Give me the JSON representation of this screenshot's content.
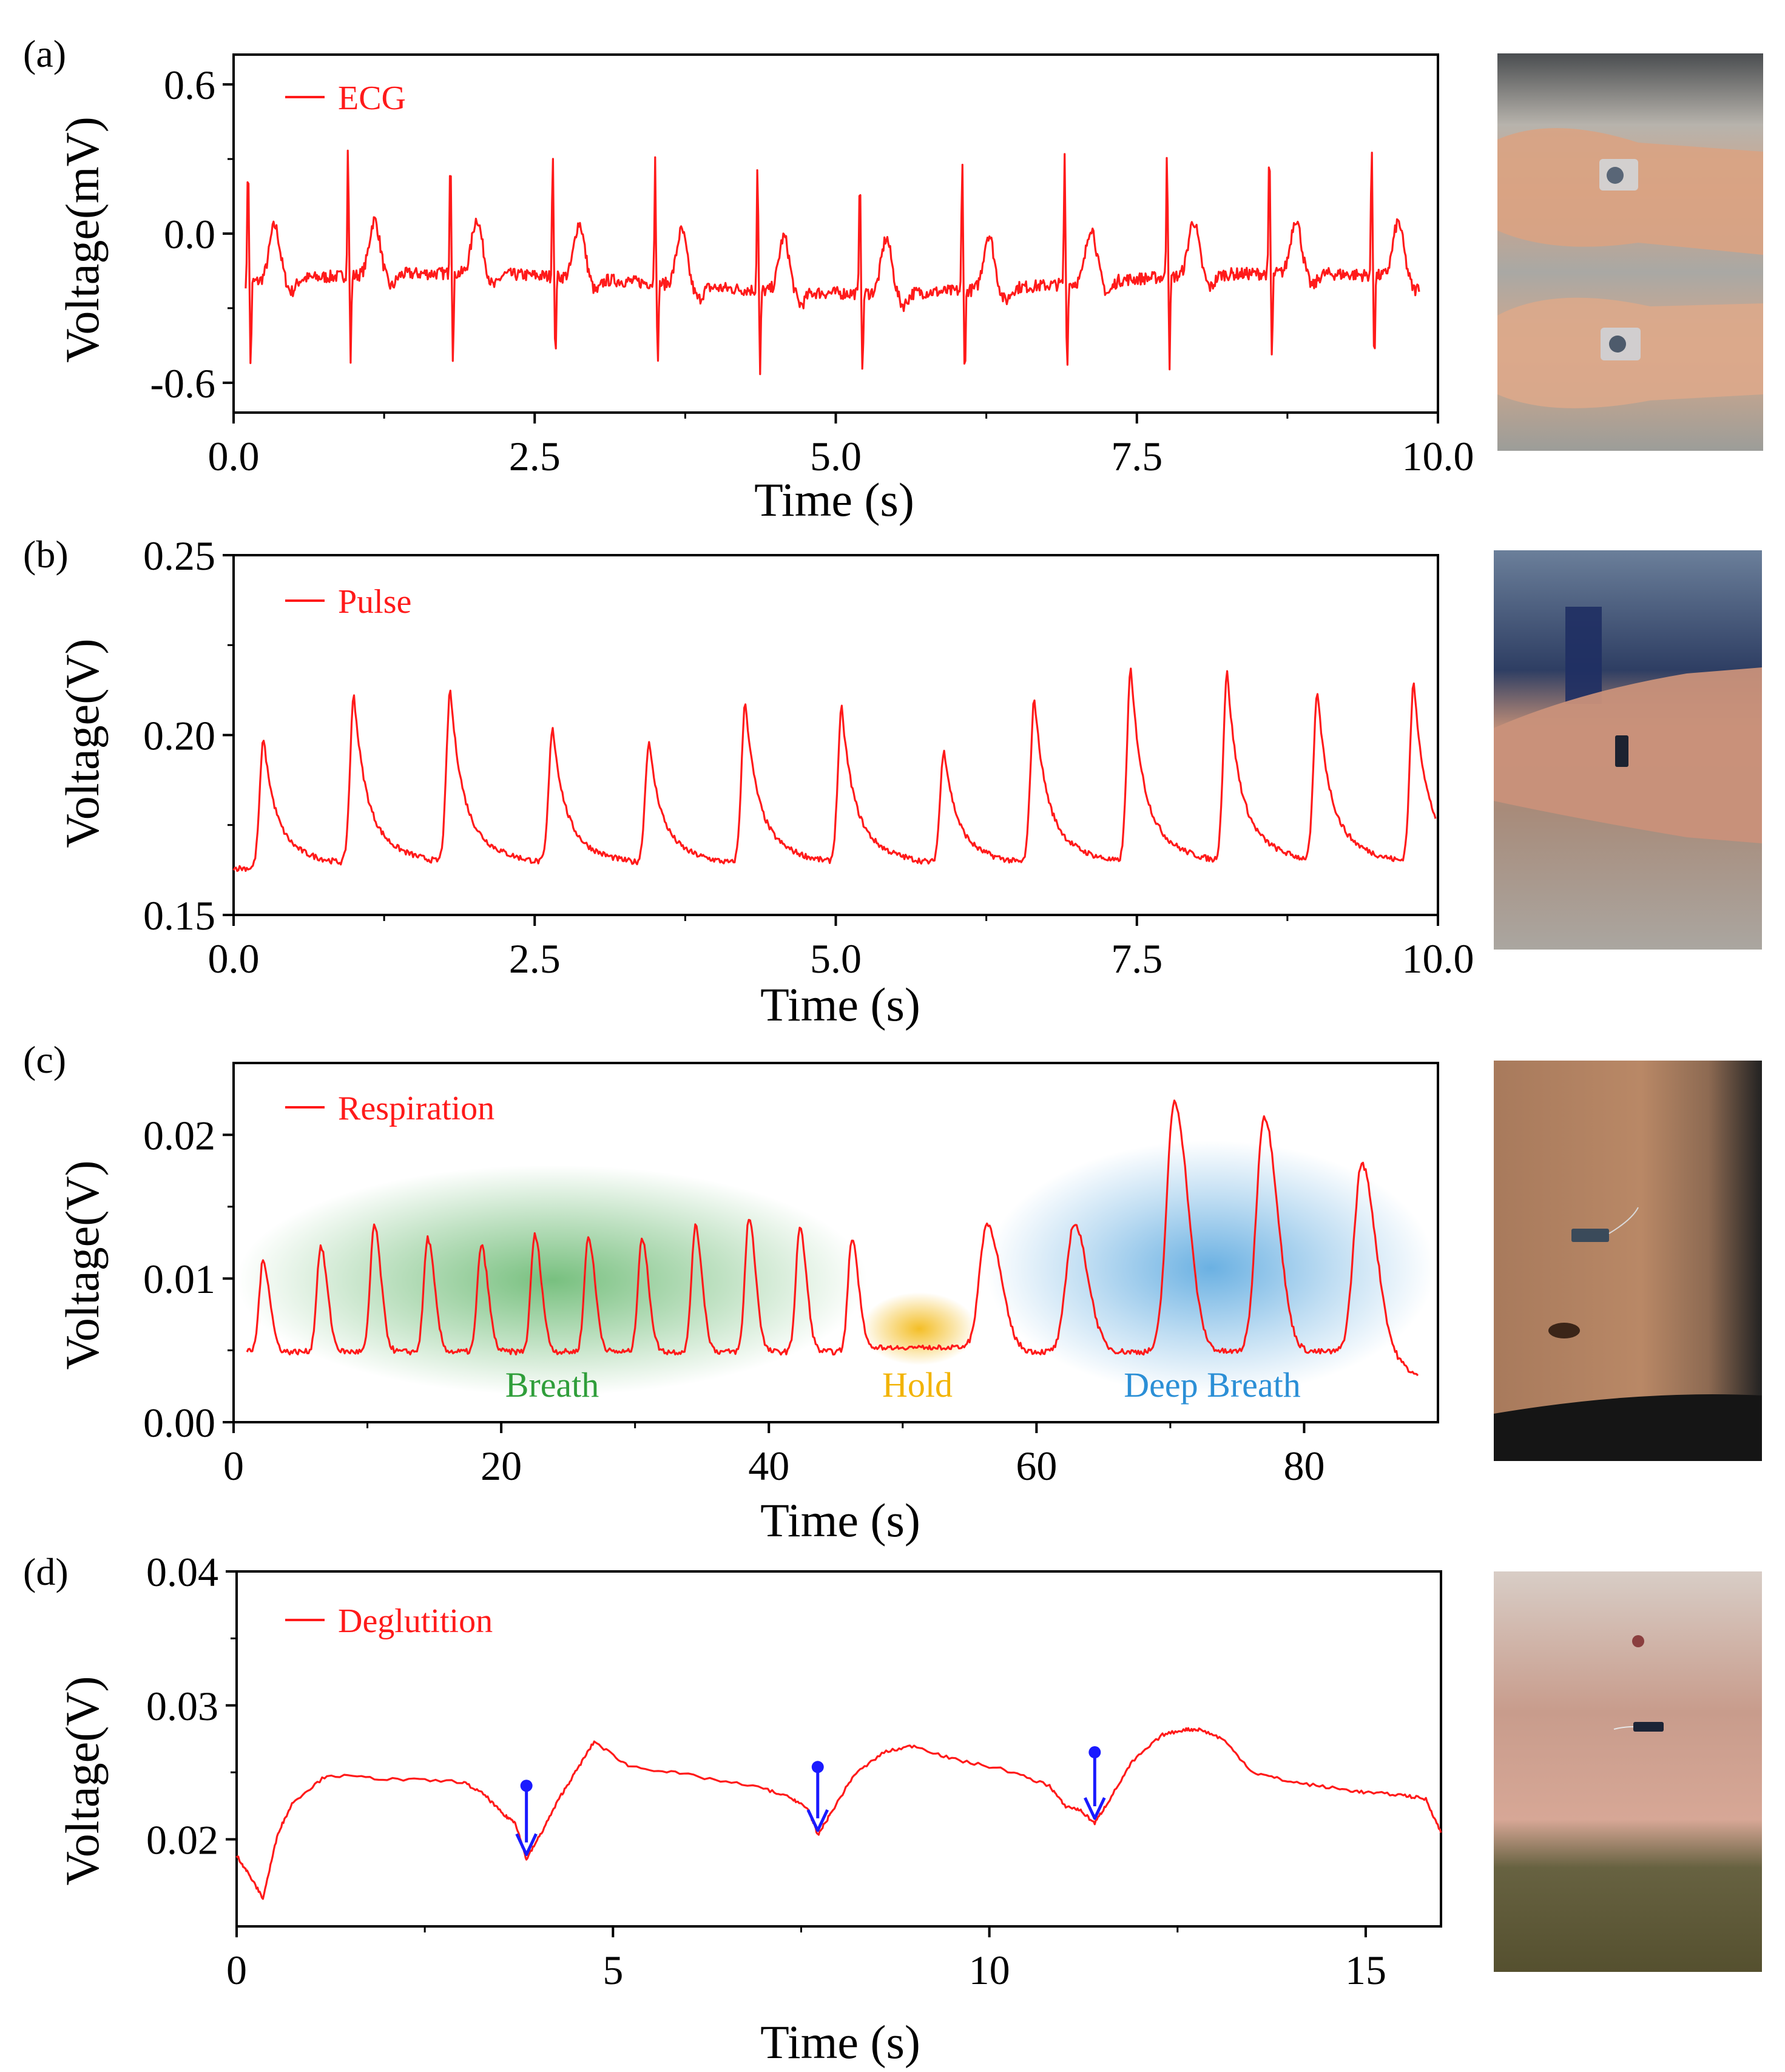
{
  "colors": {
    "trace": "#ff1a1a",
    "breath": "#2f9e3a",
    "hold": "#f2b300",
    "deep_breath": "#2b8fd6",
    "marker": "#1a1aff"
  },
  "chart_data": [
    {
      "panel": "(a)",
      "type": "line",
      "legend": "ECG",
      "xlabel": "Time (s)",
      "ylabel": "Voltage(mV)",
      "xlim": [
        0,
        10.0
      ],
      "ylim": [
        -0.72,
        0.72
      ],
      "x_ticks": [
        "0.0",
        "2.5",
        "5.0",
        "7.5",
        "10.0"
      ],
      "x_tick_values": [
        0,
        2.5,
        5.0,
        7.5,
        10.0
      ],
      "y_ticks": [
        "-0.6",
        "0.0",
        "0.6"
      ],
      "y_tick_values": [
        -0.6,
        0.0,
        0.6
      ],
      "r_peaks_s": [
        0.12,
        0.95,
        1.8,
        2.65,
        3.5,
        4.35,
        5.2,
        6.05,
        6.9,
        7.75,
        8.6,
        9.45
      ],
      "r_peak_mV": 0.33,
      "s_trough_mV": -0.55,
      "baseline_mV": -0.2,
      "x_end_s": 9.85
    },
    {
      "panel": "(b)",
      "type": "line",
      "legend": "Pulse",
      "xlabel": "Time (s)",
      "ylabel": "Voltage(V)",
      "xlim": [
        0,
        10.0
      ],
      "ylim": [
        0.15,
        0.25
      ],
      "x_ticks": [
        "0.0",
        "2.5",
        "5.0",
        "7.5",
        "10.0"
      ],
      "x_tick_values": [
        0,
        2.5,
        5.0,
        7.5,
        10.0
      ],
      "y_ticks": [
        "0.15",
        "0.20",
        "0.25"
      ],
      "y_tick_values": [
        0.15,
        0.2,
        0.25
      ],
      "peaks": {
        "t": [
          0.25,
          1.0,
          1.8,
          2.65,
          3.45,
          4.25,
          5.05,
          5.9,
          6.65,
          7.45,
          8.25,
          9.0,
          9.8
        ],
        "v": [
          0.199,
          0.21,
          0.211,
          0.201,
          0.197,
          0.208,
          0.206,
          0.195,
          0.209,
          0.217,
          0.216,
          0.21,
          0.213
        ]
      },
      "x_end_s": 9.98
    },
    {
      "panel": "(c)",
      "type": "line",
      "legend": "Respiration",
      "xlabel": "Time (s)",
      "ylabel": "Voltage(V)",
      "xlim": [
        0,
        90
      ],
      "ylim": [
        0.0,
        0.025
      ],
      "x_ticks": [
        "0",
        "20",
        "40",
        "60",
        "80"
      ],
      "x_tick_values": [
        0,
        20,
        40,
        60,
        80
      ],
      "y_ticks": [
        "0.00",
        "0.01",
        "0.02"
      ],
      "y_tick_values": [
        0.0,
        0.01,
        0.02
      ],
      "regions": [
        {
          "label": "Breath",
          "x_from": 5,
          "x_to": 46,
          "color_key": "breath"
        },
        {
          "label": "Hold",
          "x_from": 47,
          "x_to": 55,
          "color_key": "hold"
        },
        {
          "label": "Deep Breath",
          "x_from": 58,
          "x_to": 88,
          "color_key": "deep_breath"
        }
      ],
      "peaks": {
        "t": [
          2.2,
          6.5,
          10.5,
          14.5,
          18.5,
          22.5,
          26.5,
          30.5,
          34.5,
          38.5,
          42.3,
          46.2,
          56.3,
          62.8,
          70.3,
          77.0,
          84.3
        ],
        "v": [
          0.0112,
          0.0122,
          0.0137,
          0.0128,
          0.0123,
          0.013,
          0.0129,
          0.0128,
          0.0136,
          0.0142,
          0.0135,
          0.0128,
          0.0138,
          0.0138,
          0.0223,
          0.0213,
          0.018
        ]
      },
      "x_end_s": 88.5
    },
    {
      "panel": "(d)",
      "type": "line",
      "legend": "Deglutition",
      "xlabel": "Time (s)",
      "ylabel": "Voltage(V)",
      "xlim": [
        0,
        16
      ],
      "ylim": [
        0.0135,
        0.04
      ],
      "x_ticks": [
        "0",
        "5",
        "10",
        "15"
      ],
      "x_tick_values": [
        0,
        5,
        10,
        15
      ],
      "y_ticks": [
        "0.02",
        "0.03",
        "0.04"
      ],
      "y_tick_values": [
        0.02,
        0.03,
        0.04
      ],
      "swallow_events": {
        "t": [
          3.85,
          7.72,
          11.4
        ],
        "v": [
          0.0185,
          0.0203,
          0.0212
        ],
        "marker_top": [
          0.024,
          0.0254,
          0.0265
        ]
      },
      "trace_points": {
        "t": [
          0,
          0.15,
          0.35,
          0.55,
          0.75,
          1.2,
          2.0,
          3.0,
          3.3,
          3.55,
          3.7,
          3.85,
          4.05,
          4.3,
          4.5,
          4.75,
          5.2,
          6.0,
          7.0,
          7.4,
          7.6,
          7.72,
          7.9,
          8.2,
          8.6,
          9.0,
          9.5,
          10.2,
          10.8,
          11.0,
          11.2,
          11.4,
          11.6,
          11.9,
          12.3,
          12.6,
          12.8,
          13.1,
          13.5,
          14.0,
          14.6,
          15.0,
          15.5,
          15.8,
          16.0
        ],
        "v": [
          0.0188,
          0.0175,
          0.0156,
          0.0205,
          0.0228,
          0.0248,
          0.0245,
          0.0243,
          0.0233,
          0.0218,
          0.0213,
          0.0185,
          0.0205,
          0.0232,
          0.025,
          0.0273,
          0.0255,
          0.0248,
          0.0238,
          0.023,
          0.0222,
          0.0203,
          0.022,
          0.0248,
          0.0265,
          0.027,
          0.026,
          0.0252,
          0.024,
          0.0225,
          0.0222,
          0.0212,
          0.023,
          0.0258,
          0.0278,
          0.0282,
          0.0282,
          0.0275,
          0.025,
          0.0243,
          0.0238,
          0.0235,
          0.0233,
          0.023,
          0.0205
        ]
      }
    }
  ]
}
